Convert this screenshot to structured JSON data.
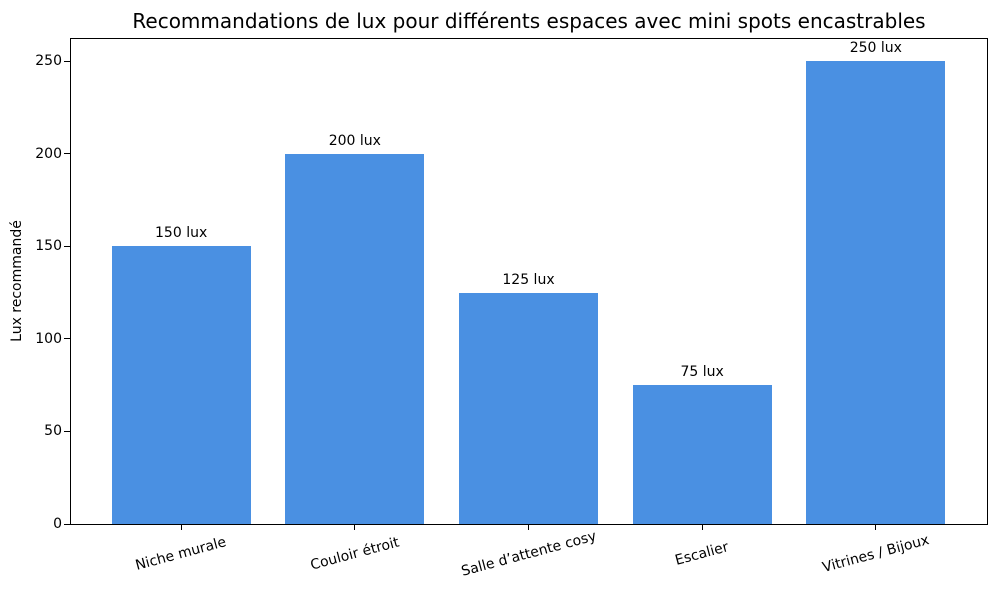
{
  "chart_data": {
    "type": "bar",
    "title": "Recommandations de lux pour différents espaces avec mini spots encastrables",
    "xlabel": "",
    "ylabel": "Lux recommandé",
    "categories": [
      "Niche murale",
      "Couloir étroit",
      "Salle d’attente cosy",
      "Escalier",
      "Vitrines / Bijoux"
    ],
    "values": [
      150,
      200,
      125,
      75,
      250
    ],
    "bar_labels": [
      "150 lux",
      "200 lux",
      "125 lux",
      "75 lux",
      "250 lux"
    ],
    "yticks": [
      0,
      50,
      100,
      150,
      200,
      250
    ],
    "ylim": [
      0,
      262.5
    ],
    "bar_color": "#4a90e2",
    "text_color": "#000000",
    "grid": false,
    "legend": null,
    "x_tick_label_rotation_deg": 15
  }
}
